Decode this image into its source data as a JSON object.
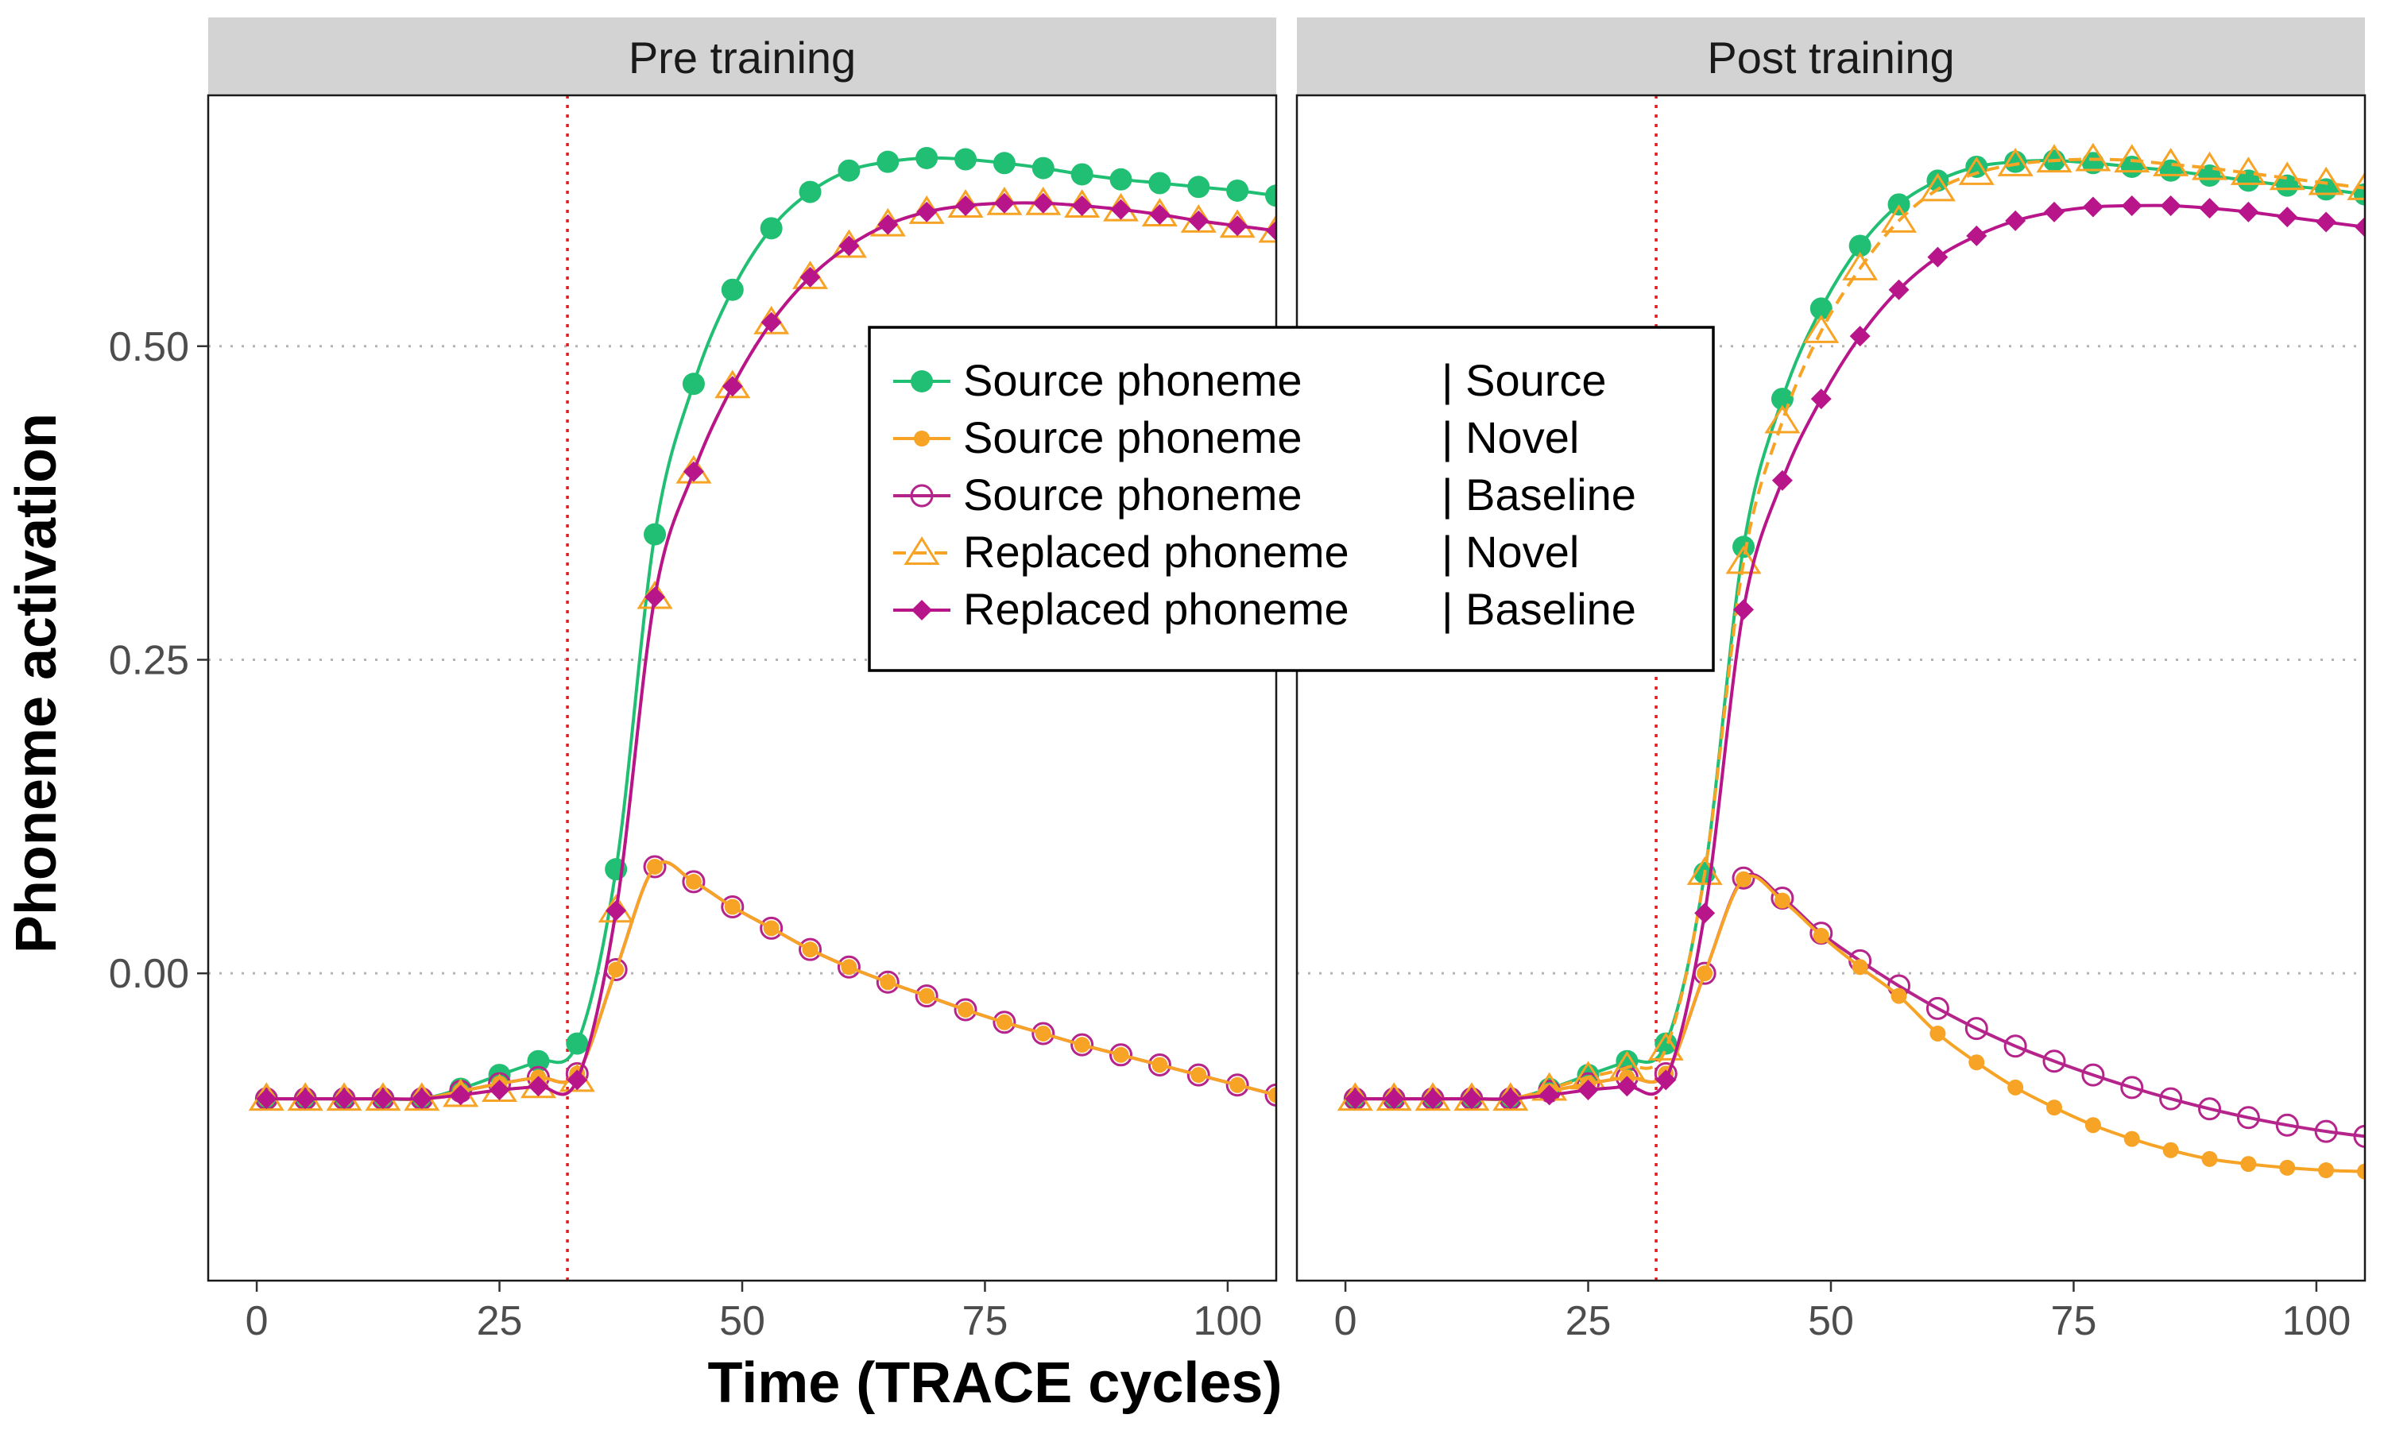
{
  "chart_data": {
    "type": "line",
    "xlabel": "Time (TRACE cycles)",
    "ylabel": "Phoneme activation",
    "xlim": [
      -5,
      105
    ],
    "ylim": [
      -0.245,
      0.7
    ],
    "x_ticks": [
      0,
      25,
      50,
      75,
      100
    ],
    "x_tick_labels": [
      "0",
      "25",
      "50",
      "75",
      "100"
    ],
    "y_ticks": [
      0,
      0.25,
      0.5
    ],
    "y_tick_labels": [
      "0.00",
      "0.25",
      "0.50"
    ],
    "grid": "horizontal dotted",
    "vline": {
      "x": 32,
      "color": "#e41a1c"
    },
    "legend": {
      "position": "center",
      "entries": [
        {
          "series": "src_src",
          "left": "Source phoneme",
          "right": "| Source"
        },
        {
          "series": "src_nov",
          "left": "Source phoneme",
          "right": "| Novel"
        },
        {
          "series": "src_base",
          "left": "Source phoneme",
          "right": "| Baseline"
        },
        {
          "series": "rep_nov",
          "left": "Replaced phoneme",
          "right": "| Novel"
        },
        {
          "series": "rep_base",
          "left": "Replaced phoneme",
          "right": "| Baseline"
        }
      ]
    },
    "series_styles": {
      "src_src": {
        "color": "#21bf73",
        "marker": "circle-filled",
        "dash": false
      },
      "src_nov": {
        "color": "#f7a325",
        "marker": "circle-filled-small",
        "dash": false
      },
      "src_base": {
        "color": "#b5248a",
        "marker": "circle-open",
        "dash": false
      },
      "rep_nov": {
        "color": "#f7a325",
        "marker": "triangle-open",
        "dash": true
      },
      "rep_base": {
        "color": "#b8158a",
        "marker": "diamond-filled",
        "dash": false
      }
    },
    "x": [
      1,
      5,
      9,
      13,
      17,
      21,
      25,
      29,
      33,
      37,
      41,
      45,
      49,
      53,
      57,
      61,
      65,
      69,
      73,
      77,
      81,
      85,
      89,
      93,
      97,
      101,
      105
    ],
    "panels": [
      {
        "title": "Pre training",
        "series": [
          {
            "key": "src_src",
            "values": [
              -0.1,
              -0.1,
              -0.1,
              -0.1,
              -0.1,
              -0.092,
              -0.081,
              -0.07,
              -0.056,
              0.083,
              0.35,
              0.47,
              0.545,
              0.594,
              0.623,
              0.64,
              0.647,
              0.65,
              0.649,
              0.646,
              0.642,
              0.637,
              0.633,
              0.63,
              0.627,
              0.624,
              0.62
            ]
          },
          {
            "key": "src_nov",
            "values": [
              -0.1,
              -0.1,
              -0.1,
              -0.1,
              -0.1,
              -0.094,
              -0.088,
              -0.083,
              -0.08,
              0.003,
              0.085,
              0.073,
              0.053,
              0.036,
              0.019,
              0.005,
              -0.007,
              -0.018,
              -0.029,
              -0.039,
              -0.048,
              -0.057,
              -0.065,
              -0.073,
              -0.081,
              -0.089,
              -0.097
            ]
          },
          {
            "key": "src_base",
            "values": [
              -0.1,
              -0.1,
              -0.1,
              -0.1,
              -0.1,
              -0.094,
              -0.088,
              -0.083,
              -0.08,
              0.003,
              0.085,
              0.073,
              0.053,
              0.036,
              0.019,
              0.005,
              -0.007,
              -0.018,
              -0.029,
              -0.039,
              -0.048,
              -0.057,
              -0.065,
              -0.073,
              -0.081,
              -0.089,
              -0.097
            ]
          },
          {
            "key": "rep_nov",
            "values": [
              -0.1,
              -0.1,
              -0.1,
              -0.1,
              -0.1,
              -0.097,
              -0.093,
              -0.09,
              -0.085,
              0.05,
              0.3,
              0.4,
              0.468,
              0.519,
              0.555,
              0.58,
              0.597,
              0.607,
              0.612,
              0.614,
              0.614,
              0.612,
              0.609,
              0.605,
              0.6,
              0.596,
              0.592
            ]
          },
          {
            "key": "rep_base",
            "values": [
              -0.1,
              -0.1,
              -0.1,
              -0.1,
              -0.1,
              -0.097,
              -0.093,
              -0.09,
              -0.085,
              0.05,
              0.3,
              0.4,
              0.468,
              0.519,
              0.555,
              0.58,
              0.597,
              0.607,
              0.612,
              0.614,
              0.614,
              0.612,
              0.609,
              0.605,
              0.6,
              0.596,
              0.592
            ]
          }
        ]
      },
      {
        "title": "Post training",
        "series": [
          {
            "key": "src_src",
            "values": [
              -0.1,
              -0.1,
              -0.1,
              -0.1,
              -0.1,
              -0.092,
              -0.081,
              -0.07,
              -0.056,
              0.08,
              0.34,
              0.458,
              0.53,
              0.58,
              0.613,
              0.632,
              0.643,
              0.647,
              0.648,
              0.646,
              0.643,
              0.64,
              0.636,
              0.632,
              0.628,
              0.625,
              0.621
            ]
          },
          {
            "key": "src_nov",
            "values": [
              -0.1,
              -0.1,
              -0.1,
              -0.1,
              -0.1,
              -0.094,
              -0.088,
              -0.083,
              -0.08,
              0.0,
              0.075,
              0.058,
              0.03,
              0.005,
              -0.018,
              -0.048,
              -0.071,
              -0.091,
              -0.107,
              -0.121,
              -0.132,
              -0.141,
              -0.148,
              -0.152,
              -0.155,
              -0.157,
              -0.158
            ]
          },
          {
            "key": "src_base",
            "values": [
              -0.1,
              -0.1,
              -0.1,
              -0.1,
              -0.1,
              -0.094,
              -0.088,
              -0.083,
              -0.08,
              0.0,
              0.076,
              0.06,
              0.032,
              0.01,
              -0.01,
              -0.028,
              -0.044,
              -0.058,
              -0.07,
              -0.081,
              -0.091,
              -0.1,
              -0.108,
              -0.115,
              -0.121,
              -0.126,
              -0.13
            ]
          },
          {
            "key": "rep_nov",
            "values": [
              -0.1,
              -0.1,
              -0.1,
              -0.1,
              -0.1,
              -0.092,
              -0.083,
              -0.075,
              -0.06,
              0.08,
              0.328,
              0.44,
              0.512,
              0.562,
              0.6,
              0.625,
              0.638,
              0.645,
              0.648,
              0.649,
              0.648,
              0.645,
              0.642,
              0.638,
              0.634,
              0.63,
              0.626
            ]
          },
          {
            "key": "rep_base",
            "values": [
              -0.1,
              -0.1,
              -0.1,
              -0.1,
              -0.1,
              -0.097,
              -0.093,
              -0.09,
              -0.085,
              0.048,
              0.29,
              0.393,
              0.458,
              0.508,
              0.545,
              0.571,
              0.588,
              0.6,
              0.607,
              0.611,
              0.612,
              0.612,
              0.61,
              0.607,
              0.603,
              0.599,
              0.595
            ]
          }
        ]
      }
    ]
  }
}
